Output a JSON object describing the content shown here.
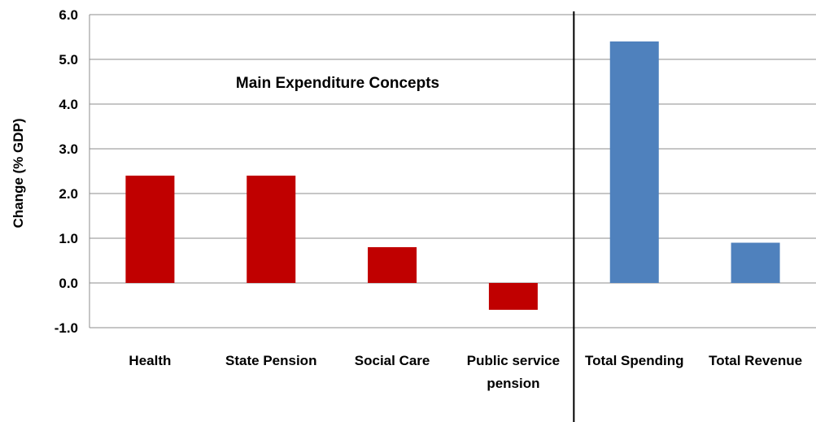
{
  "chart_data": {
    "type": "bar",
    "categories": [
      [
        "Health"
      ],
      [
        "State Pension"
      ],
      [
        "Social Care"
      ],
      [
        "Public service",
        "pension"
      ],
      [
        "Total Spending"
      ],
      [
        "Total Revenue"
      ]
    ],
    "values": [
      2.4,
      2.4,
      0.8,
      -0.6,
      5.4,
      0.9
    ],
    "bar_colors": [
      "#c00000",
      "#c00000",
      "#c00000",
      "#c00000",
      "#4f81bd",
      "#4f81bd"
    ],
    "title": "",
    "xlabel": "",
    "ylabel": "Change (% GDP)",
    "ylim": [
      -1.0,
      6.0
    ],
    "yticks": [
      "6.0",
      "5.0",
      "4.0",
      "3.0",
      "2.0",
      "1.0",
      "0.0",
      "-1.0"
    ],
    "ytick_values": [
      6,
      5,
      4,
      3,
      2,
      1,
      0,
      -1
    ],
    "annotation": "Main Expenditure Concepts",
    "divider_after_category": 4,
    "grid": true,
    "legend": "none"
  }
}
